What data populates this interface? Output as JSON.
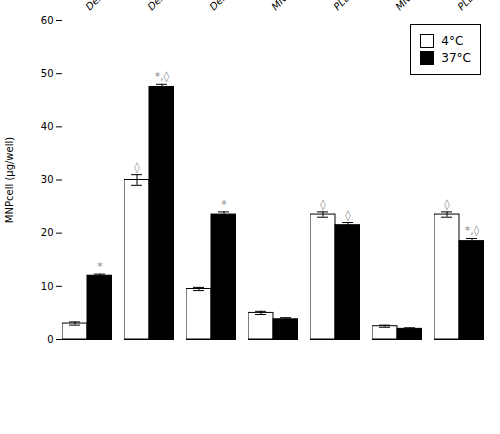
{
  "chart_data": {
    "type": "bar",
    "categories": [
      "Dex-MNPs",
      "Dex-MNPs + PLL",
      "Dex-MNPs + EGCG",
      "MNPs⁻",
      "PLL-MNPs⁻",
      "MNPs⁺",
      "PLL-MNPs⁺"
    ],
    "series": [
      {
        "name": "4°C",
        "color": "white",
        "values": [
          3.0,
          30.0,
          9.5,
          5.0,
          23.5,
          2.5,
          23.5
        ],
        "errors": [
          0.3,
          1.0,
          0.3,
          0.3,
          0.5,
          0.2,
          0.5
        ]
      },
      {
        "name": "37°C",
        "color": "black",
        "values": [
          12.0,
          47.5,
          23.5,
          3.8,
          21.5,
          2.0,
          18.5
        ],
        "errors": [
          0.3,
          0.5,
          0.5,
          0.3,
          0.5,
          0.2,
          0.5
        ]
      }
    ],
    "annotations": [
      {
        "series": "4°C",
        "category": "Dex-MNPs + PLL",
        "text": "◊",
        "color": "#888888"
      },
      {
        "series": "4°C",
        "category": "PLL-MNPs⁻",
        "text": "◊",
        "color": "#888888"
      },
      {
        "series": "4°C",
        "category": "PLL-MNPs⁺",
        "text": "◊",
        "color": "#888888"
      },
      {
        "series": "37°C",
        "category": "Dex-MNPs",
        "text": "*",
        "color": "#888888"
      },
      {
        "series": "37°C",
        "category": "Dex-MNPs + PLL",
        "text": "*,◊",
        "color": "#888888"
      },
      {
        "series": "37°C",
        "category": "Dex-MNPs + EGCG",
        "text": "*",
        "color": "#888888"
      },
      {
        "series": "37°C",
        "category": "PLL-MNPs⁻",
        "text": "◊",
        "color": "#888888"
      },
      {
        "series": "37°C",
        "category": "PLL-MNPs⁺",
        "text": "*,◊",
        "color": "#888888"
      }
    ],
    "ylabel": "MNPcell (μg/well)",
    "ylim": [
      0,
      60
    ],
    "yticks": [
      0,
      10,
      20,
      30,
      40,
      50,
      60
    ],
    "grid": false,
    "legend": "upper right"
  }
}
